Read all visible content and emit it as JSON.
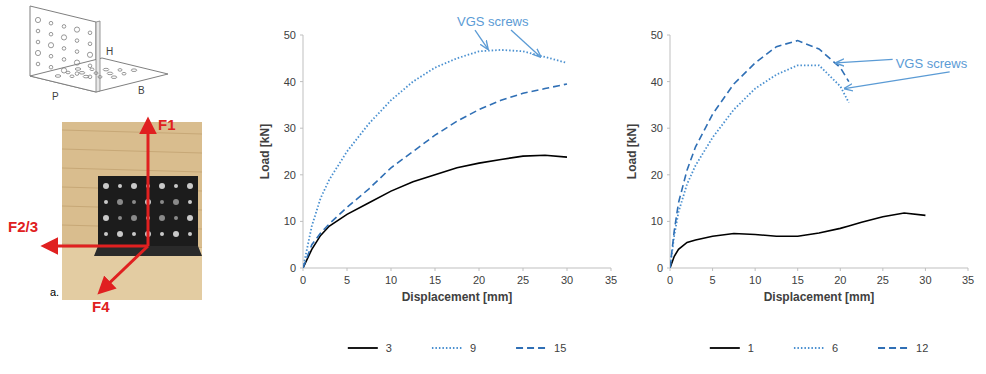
{
  "figure": {
    "dimension_labels": [
      "H",
      "P",
      "B"
    ],
    "force_labels": [
      "F1",
      "F2/3",
      "F4"
    ],
    "panel_label": "a."
  },
  "chart_data": [
    {
      "type": "line",
      "x": [
        0,
        1,
        2,
        3,
        5,
        7.5,
        10,
        12.5,
        15,
        17.5,
        20,
        22.5,
        25,
        27.5,
        30
      ],
      "xlim": [
        0,
        35
      ],
      "xticks": [
        0,
        5,
        10,
        15,
        20,
        25,
        30,
        35
      ],
      "ylim": [
        0,
        50
      ],
      "yticks": [
        0,
        10,
        20,
        30,
        40,
        50
      ],
      "x_label": "Displacement [mm]",
      "y_label": "Load [kN]",
      "grid": false,
      "legend": "bottom",
      "series": [
        {
          "name": "3",
          "color": "#000000",
          "line_style": "solid",
          "values": [
            0,
            4,
            7,
            9,
            11.5,
            14,
            16.5,
            18.5,
            20,
            21.5,
            22.5,
            23.3,
            24,
            24.2,
            23.8
          ]
        },
        {
          "name": "9",
          "color": "#4a90d0",
          "line_style": "dotted",
          "values": [
            0,
            9,
            15,
            19,
            25,
            31,
            36,
            40,
            43,
            45,
            46.5,
            46.8,
            46.5,
            45.3,
            44
          ]
        },
        {
          "name": "15",
          "color": "#2f6fb5",
          "line_style": "dashed",
          "values": [
            0,
            5,
            7.5,
            9.5,
            13,
            17,
            21.5,
            25,
            28.5,
            31.5,
            34,
            36,
            37.5,
            38.5,
            39.5
          ]
        }
      ],
      "annotations": [
        {
          "text": "VGS screws",
          "x": 17.5,
          "y": 53,
          "color": "#5b9bd5",
          "points": [
            {
              "x": 21,
              "y": 47
            },
            {
              "x": 27,
              "y": 45.3
            }
          ]
        }
      ]
    },
    {
      "type": "line",
      "x": [
        0,
        0.5,
        1,
        2,
        3,
        5,
        7.5,
        10,
        12.5,
        15,
        17.5,
        20,
        21,
        22.5,
        25,
        27.5,
        30
      ],
      "xlim": [
        0,
        35
      ],
      "xticks": [
        0,
        5,
        10,
        15,
        20,
        25,
        30,
        35
      ],
      "ylim": [
        0,
        50
      ],
      "yticks": [
        0,
        10,
        20,
        30,
        40,
        50
      ],
      "x_label": "Displacement  [mm]",
      "y_label": "Load [kN]",
      "grid": false,
      "legend": "bottom",
      "series": [
        {
          "name": "1",
          "color": "#000000",
          "line_style": "solid",
          "values": [
            0,
            2.5,
            4,
            5.5,
            6,
            6.8,
            7.4,
            7.2,
            6.8,
            6.8,
            7.5,
            8.5,
            9,
            9.8,
            11,
            11.8,
            11.3
          ]
        },
        {
          "name": "6",
          "color": "#4a90d0",
          "line_style": "dotted",
          "values": [
            0,
            7,
            12,
            18,
            22,
            28,
            34,
            38.5,
            41.5,
            43.5,
            43.5,
            39,
            35.5,
            null,
            null,
            null,
            null
          ]
        },
        {
          "name": "12",
          "color": "#2f6fb5",
          "line_style": "dashed",
          "values": [
            0,
            8,
            14,
            21,
            26,
            33,
            39.5,
            44,
            47.5,
            48.8,
            47,
            43,
            40,
            null,
            null,
            null,
            null
          ]
        }
      ],
      "annotations": [
        {
          "text": "VGS screws",
          "x": 26.5,
          "y": 44,
          "color": "#5b9bd5",
          "points": [
            {
              "x": 19.5,
              "y": 44
            },
            {
              "x": 20.5,
              "y": 38.5
            }
          ]
        }
      ]
    }
  ]
}
